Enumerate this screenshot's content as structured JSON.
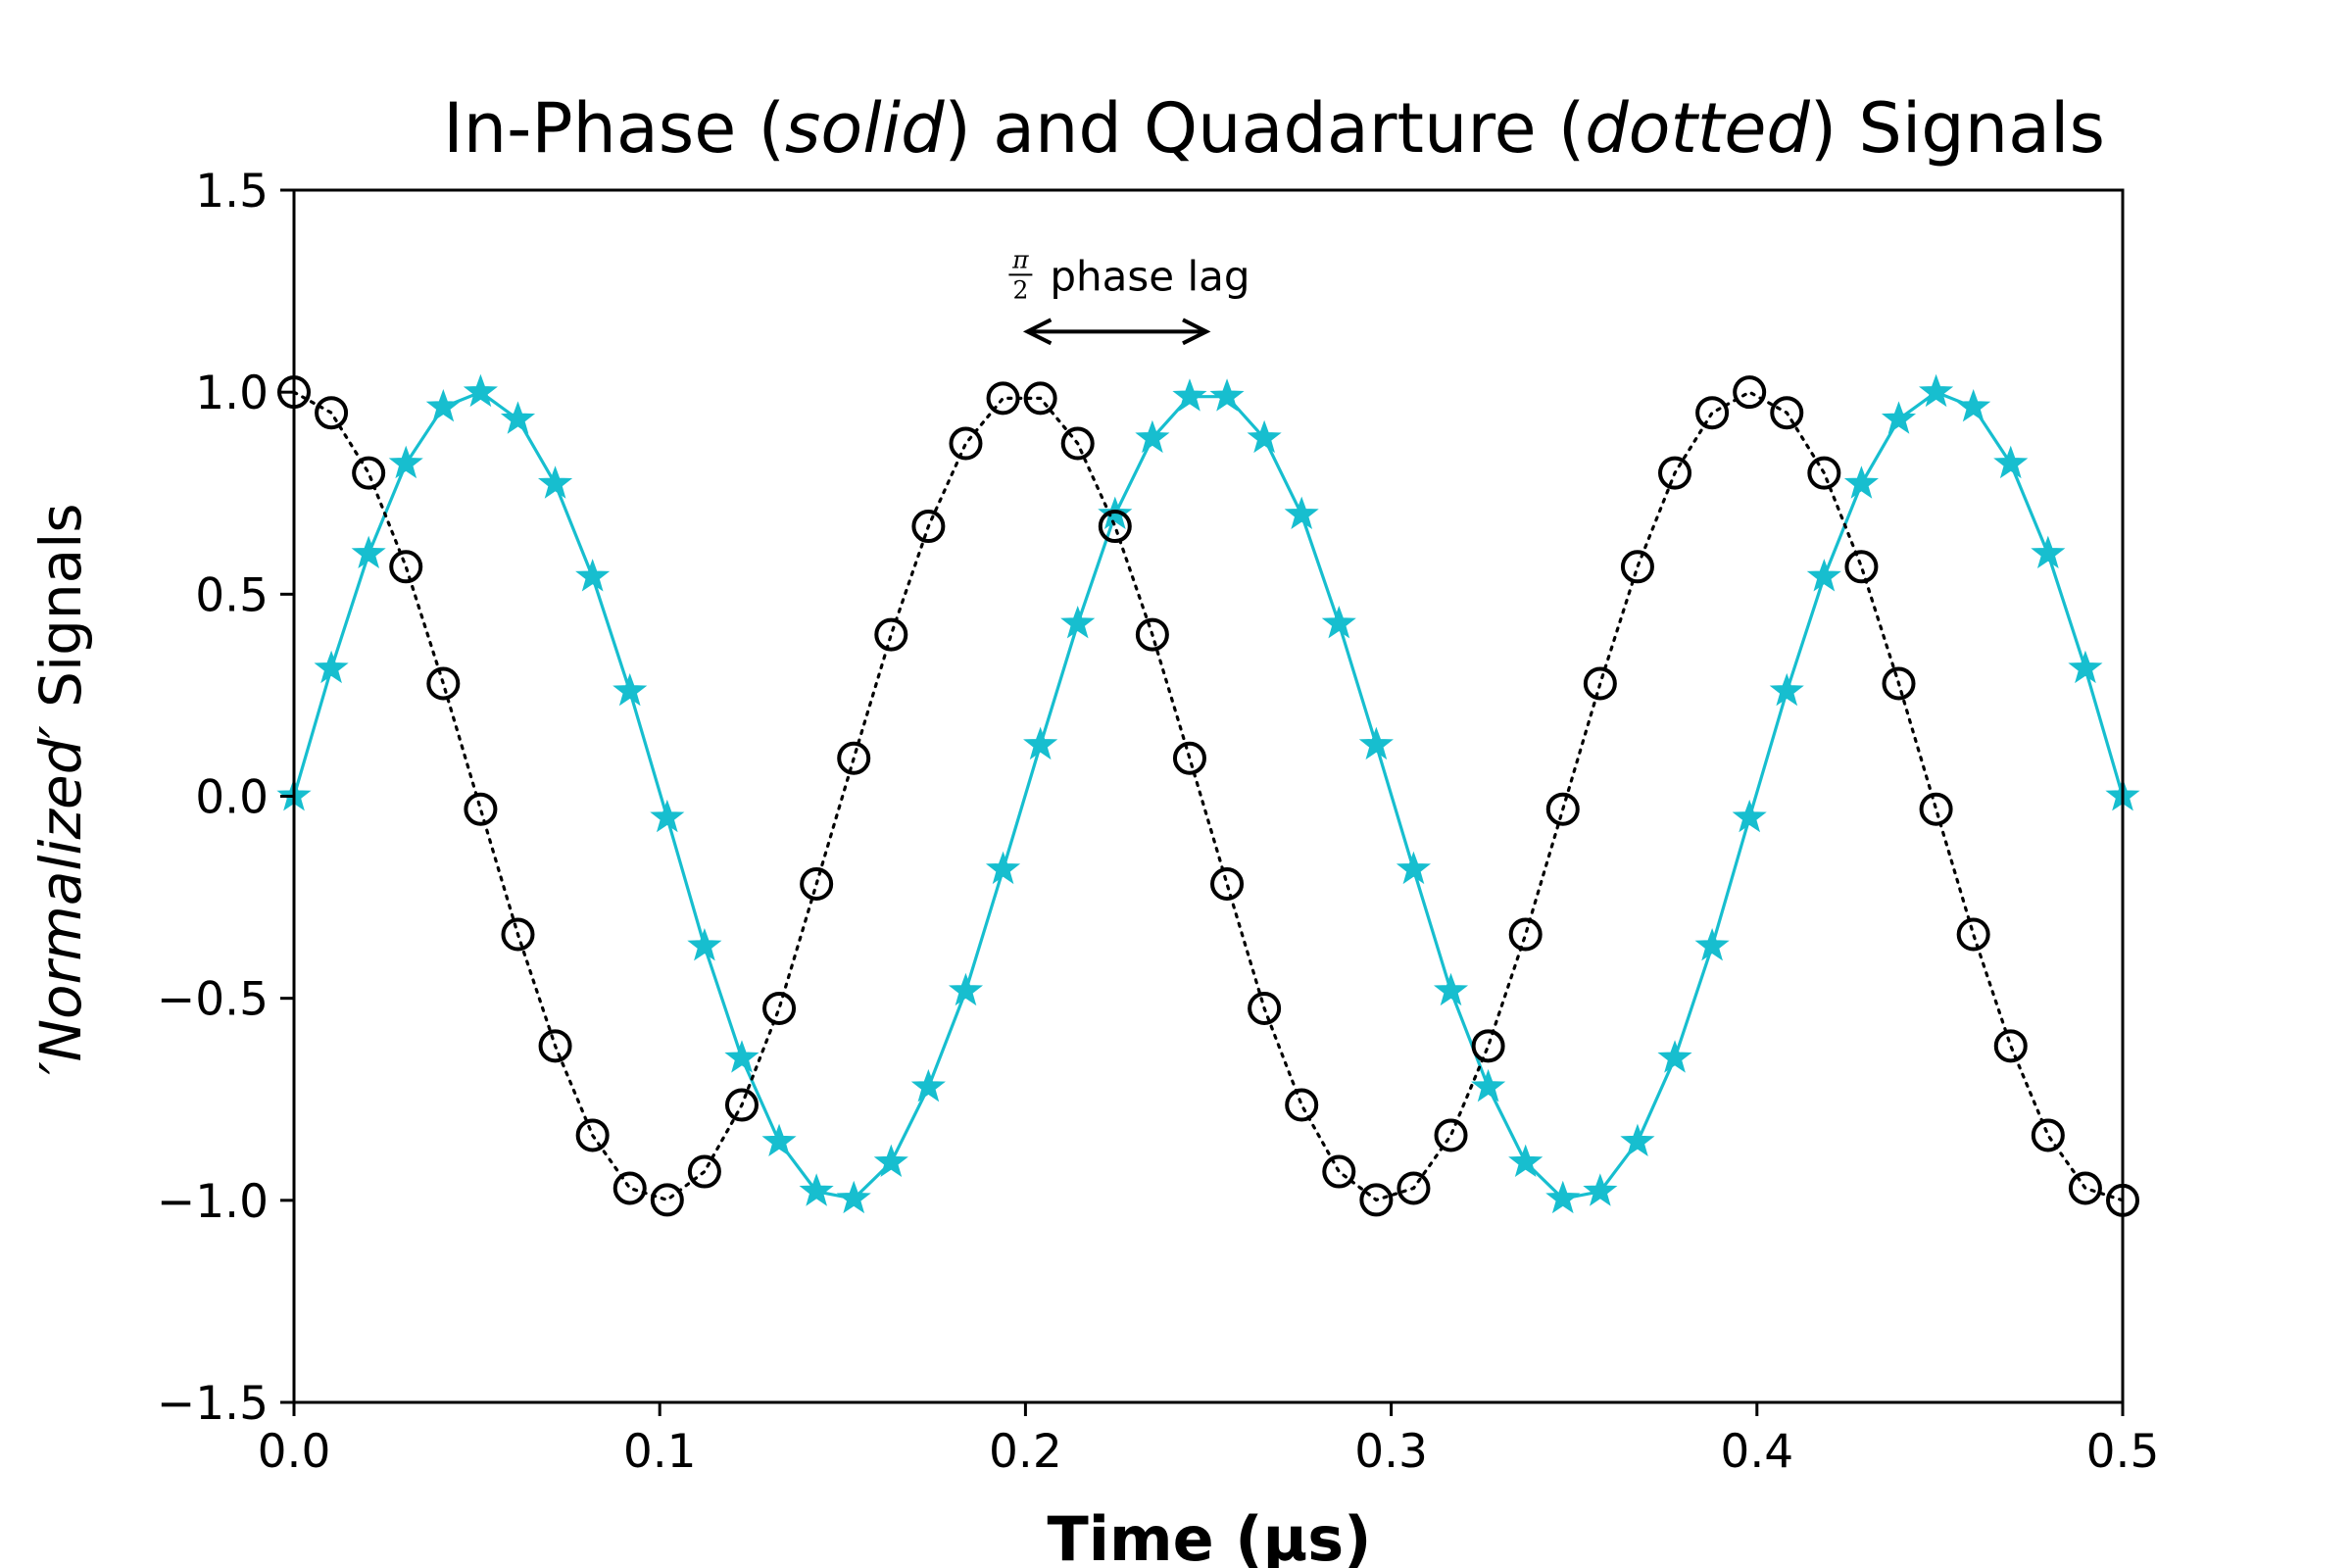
{
  "chart_data": {
    "type": "line",
    "title": {
      "prefix": "In-Phase (",
      "solid_word": "solid",
      "middle": ") and Quadarture (",
      "dotted_word": "dotted",
      "suffix": ") Signals"
    },
    "xlabel": "Time (µs)",
    "ylabel": {
      "open_quote": "′",
      "italic_word": "Normalized",
      "close_quote": "′",
      "rest": " Signals"
    },
    "xlim": [
      0,
      0.5
    ],
    "ylim": [
      -1.5,
      1.5
    ],
    "x_ticks": [
      0.0,
      0.1,
      0.2,
      0.3,
      0.4,
      0.5
    ],
    "x_tick_labels": [
      "0.0",
      "0.1",
      "0.2",
      "0.3",
      "0.4",
      "0.5"
    ],
    "y_ticks": [
      1.5,
      1.0,
      0.5,
      0.0,
      -0.5,
      -1.0,
      -1.5
    ],
    "y_tick_labels": [
      "1.5",
      "1.0",
      "0.5",
      "0.0",
      "−0.5",
      "−1.0",
      "−1.5"
    ],
    "grid": false,
    "series": [
      {
        "function": "sin",
        "frequency_mhz": 2.5,
        "x_start": 0,
        "x_end": 0.5,
        "num_points": 50,
        "color": "#17becf",
        "line_style": "solid",
        "marker": "star",
        "values": [
          0.0,
          0.316,
          0.6,
          0.823,
          0.963,
          1.0,
          0.933,
          0.773,
          0.543,
          0.26,
          -0.053,
          -0.371,
          -0.648,
          -0.855,
          -0.978,
          -0.996,
          -0.906,
          -0.72,
          -0.482,
          -0.181,
          0.127,
          0.427,
          0.697,
          0.886,
          0.989,
          0.989,
          0.886,
          0.697,
          0.427,
          0.127,
          -0.181,
          -0.482,
          -0.72,
          -0.906,
          -0.996,
          -0.978,
          -0.855,
          -0.648,
          -0.371,
          -0.053,
          0.26,
          0.543,
          0.773,
          0.933,
          1.0,
          0.963,
          0.823,
          0.6,
          0.316,
          0.0
        ]
      },
      {
        "function": "cos",
        "frequency_mhz": 2.5,
        "x_start": 0,
        "x_end": 0.5,
        "num_points": 50,
        "color": "#000000",
        "line_style": "dotted",
        "marker": "open-circle",
        "values": [
          1.0,
          0.949,
          0.8,
          0.568,
          0.279,
          -0.032,
          -0.342,
          -0.618,
          -0.839,
          -0.97,
          -0.999,
          -0.929,
          -0.764,
          -0.525,
          -0.217,
          0.094,
          0.4,
          0.668,
          0.873,
          0.985,
          0.985,
          0.873,
          0.668,
          0.4,
          0.094,
          -0.217,
          -0.525,
          -0.764,
          -0.929,
          -0.999,
          -0.97,
          -0.839,
          -0.618,
          -0.342,
          -0.032,
          0.279,
          0.568,
          0.8,
          0.949,
          1.0,
          0.949,
          0.8,
          0.568,
          0.279,
          -0.032,
          -0.342,
          -0.618,
          -0.839,
          -0.97,
          -1.0
        ]
      }
    ],
    "annotation": {
      "frac_numerator": "π",
      "frac_denominator": "2",
      "text": "phase lag",
      "arrow_x_from": 0.2,
      "arrow_x_to": 0.25,
      "arrow_y": 1.15
    }
  }
}
